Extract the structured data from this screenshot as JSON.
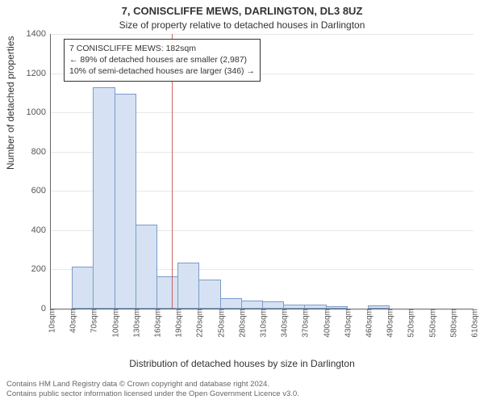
{
  "title": "7, CONISCLIFFE MEWS, DARLINGTON, DL3 8UZ",
  "subtitle": "Size of property relative to detached houses in Darlington",
  "ylabel": "Number of detached properties",
  "xlabel": "Distribution of detached houses by size in Darlington",
  "footer_line1": "Contains HM Land Registry data © Crown copyright and database right 2024.",
  "footer_line2": "Contains public sector information licensed under the Open Government Licence v3.0.",
  "annotation": {
    "line1": "7 CONISCLIFFE MEWS: 182sqm",
    "line2": "← 89% of detached houses are smaller (2,987)",
    "line3": "10% of semi-detached houses are larger (346) →"
  },
  "chart": {
    "type": "histogram",
    "xlim": [
      10,
      610
    ],
    "ylim": [
      0,
      1400
    ],
    "ytick_step": 200,
    "xtick_step": 30,
    "background_color": "#ffffff",
    "grid_color": "#e8e8e8",
    "axis_color": "#666666",
    "bar_fill": "#d6e2f3",
    "bar_stroke": "#7a9bc9",
    "bar_stroke_width": 1,
    "marker_value": 182,
    "marker_color": "#c33333",
    "annotation_border": "#333333",
    "annotation_bg": "#ffffff",
    "title_fontsize": 13,
    "subtitle_fontsize": 12,
    "axis_label_fontsize": 12,
    "tick_fontsize": 11,
    "annotation_fontsize": 10.5,
    "bins": [
      {
        "x": 10,
        "count": 0
      },
      {
        "x": 40,
        "count": 205
      },
      {
        "x": 70,
        "count": 1120
      },
      {
        "x": 100,
        "count": 1088
      },
      {
        "x": 130,
        "count": 420
      },
      {
        "x": 160,
        "count": 155
      },
      {
        "x": 190,
        "count": 225
      },
      {
        "x": 220,
        "count": 140
      },
      {
        "x": 250,
        "count": 45
      },
      {
        "x": 280,
        "count": 35
      },
      {
        "x": 310,
        "count": 28
      },
      {
        "x": 340,
        "count": 12
      },
      {
        "x": 370,
        "count": 14
      },
      {
        "x": 400,
        "count": 5
      },
      {
        "x": 430,
        "count": 0
      },
      {
        "x": 460,
        "count": 10
      },
      {
        "x": 490,
        "count": 0
      },
      {
        "x": 520,
        "count": 0
      },
      {
        "x": 550,
        "count": 0
      },
      {
        "x": 580,
        "count": 0
      }
    ]
  }
}
